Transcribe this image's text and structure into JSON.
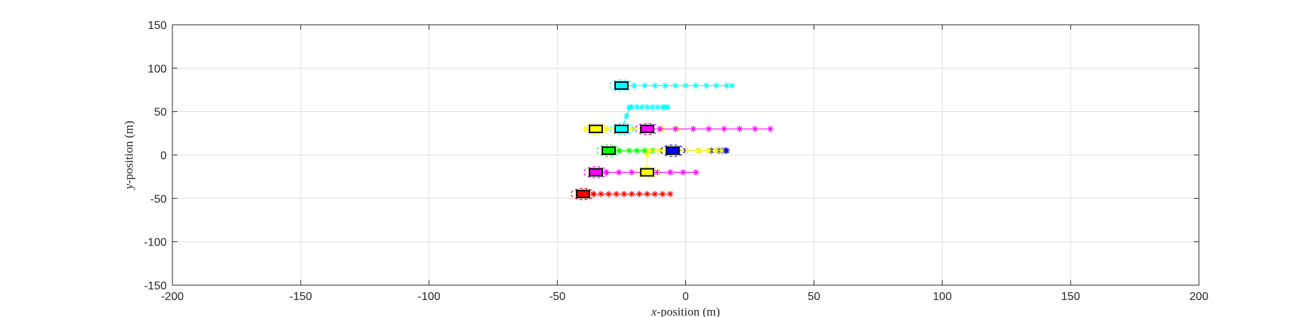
{
  "chart_data": {
    "type": "scatter",
    "title": "",
    "xlabel_var": "x",
    "xlabel_rest": "-position (m)",
    "ylabel_var": "y",
    "ylabel_rest": "-position (m)",
    "xlim": [
      -200,
      200
    ],
    "ylim": [
      -150,
      150
    ],
    "xticks": [
      -200,
      -150,
      -100,
      -50,
      0,
      50,
      100,
      150,
      200
    ],
    "yticks": [
      -150,
      -100,
      -50,
      0,
      50,
      100,
      150
    ],
    "grid": true,
    "legend": "none",
    "vehicles": [
      {
        "color": "#00FFFF",
        "x": -25,
        "y": 80,
        "traj_x": [
          -20,
          -16,
          -12,
          -8,
          -4,
          0,
          4,
          8,
          12,
          16,
          18
        ],
        "traj_y": [
          80,
          80,
          80,
          80,
          80,
          80,
          80,
          80,
          80,
          80,
          80
        ]
      },
      {
        "color": "#00FFFF",
        "x": -25,
        "y": 30,
        "traj_x": [
          -25,
          -23,
          -22,
          -21,
          -19,
          -17,
          -15,
          -13,
          -11,
          -9,
          -8,
          -7
        ],
        "traj_y": [
          30,
          45,
          55,
          55,
          55,
          55,
          55,
          55,
          55,
          55,
          55,
          55
        ]
      },
      {
        "color": "#FFFF00",
        "x": -35,
        "y": 30,
        "traj_x": [
          -39,
          -31,
          -27,
          -21,
          -15,
          -9,
          -3
        ],
        "traj_y": [
          30,
          30,
          30,
          30,
          30,
          30,
          30
        ]
      },
      {
        "color": "#FF00FF",
        "x": -15,
        "y": 30,
        "traj_x": [
          -10,
          -4,
          3,
          9,
          15,
          21,
          27,
          33
        ],
        "traj_y": [
          30,
          30,
          30,
          30,
          30,
          30,
          30,
          30
        ]
      },
      {
        "color": "#00FF00",
        "x": -30,
        "y": 5,
        "traj_x": [
          -26,
          -22,
          -19,
          -16,
          -13,
          -10,
          -7
        ],
        "traj_y": [
          5,
          5,
          5,
          5,
          5,
          5,
          5
        ]
      },
      {
        "color": "#0000FF",
        "x": -5,
        "y": 5,
        "traj_x": [
          0,
          5,
          10,
          13,
          14.5,
          15.5,
          16
        ],
        "traj_y": [
          5,
          5,
          5,
          5,
          5,
          5,
          5
        ]
      },
      {
        "color": "#FFFF00",
        "x": -15,
        "y": -20,
        "traj_x": [
          -15,
          -14,
          -10,
          -5,
          0,
          5,
          9,
          12,
          14
        ],
        "traj_y": [
          0,
          5,
          5,
          5,
          5,
          5,
          5,
          5,
          5
        ]
      },
      {
        "color": "#FF00FF",
        "x": -35,
        "y": -20,
        "traj_x": [
          -31,
          -26,
          -21,
          -16,
          -11,
          -6,
          -1,
          4
        ],
        "traj_y": [
          -20,
          -20,
          -20,
          -20,
          -20,
          -20,
          -20,
          -20
        ]
      },
      {
        "color": "#FF0000",
        "x": -40,
        "y": -45,
        "traj_x": [
          -36,
          -33,
          -30,
          -27,
          -24,
          -21,
          -18,
          -15,
          -12,
          -9,
          -6
        ],
        "traj_y": [
          -45,
          -45,
          -45,
          -45,
          -45,
          -45,
          -45,
          -45,
          -45,
          -45,
          -45
        ]
      }
    ]
  }
}
